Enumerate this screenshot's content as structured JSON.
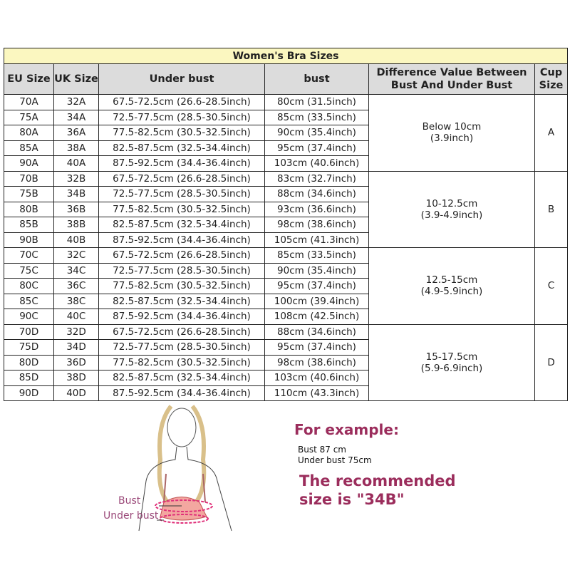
{
  "title": "Women's Bra Sizes",
  "headers": [
    "EU Size",
    "UK Size",
    "Under bust",
    "bust",
    "Difference Value Between Bust And Under Bust",
    "Cup Size"
  ],
  "groups": [
    {
      "difference": "Below 10cm (3.9inch)",
      "cup": "A",
      "rows": [
        [
          "70A",
          "32A",
          "67.5-72.5cm (26.6-28.5inch)",
          "80cm (31.5inch)"
        ],
        [
          "75A",
          "34A",
          "72.5-77.5cm (28.5-30.5inch)",
          "85cm (33.5inch)"
        ],
        [
          "80A",
          "36A",
          "77.5-82.5cm (30.5-32.5inch)",
          "90cm (35.4inch)"
        ],
        [
          "85A",
          "38A",
          "82.5-87.5cm (32.5-34.4inch)",
          "95cm (37.4inch)"
        ],
        [
          "90A",
          "40A",
          "87.5-92.5cm (34.4-36.4inch)",
          "103cm (40.6inch)"
        ]
      ]
    },
    {
      "difference": "10-12.5cm (3.9-4.9inch)",
      "cup": "B",
      "rows": [
        [
          "70B",
          "32B",
          "67.5-72.5cm (26.6-28.5inch)",
          "83cm (32.7inch)"
        ],
        [
          "75B",
          "34B",
          "72.5-77.5cm (28.5-30.5inch)",
          "88cm (34.6inch)"
        ],
        [
          "80B",
          "36B",
          "77.5-82.5cm (30.5-32.5inch)",
          "93cm (36.6inch)"
        ],
        [
          "85B",
          "38B",
          "82.5-87.5cm (32.5-34.4inch)",
          "98cm (38.6inch)"
        ],
        [
          "90B",
          "40B",
          "87.5-92.5cm (34.4-36.4inch)",
          "105cm (41.3inch)"
        ]
      ]
    },
    {
      "difference": "12.5-15cm (4.9-5.9inch)",
      "cup": "C",
      "rows": [
        [
          "70C",
          "32C",
          "67.5-72.5cm (26.6-28.5inch)",
          "85cm (33.5inch)"
        ],
        [
          "75C",
          "34C",
          "72.5-77.5cm (28.5-30.5inch)",
          "90cm (35.4inch)"
        ],
        [
          "80C",
          "36C",
          "77.5-82.5cm (30.5-32.5inch)",
          "95cm (37.4inch)"
        ],
        [
          "85C",
          "38C",
          "82.5-87.5cm (32.5-34.4inch)",
          "100cm (39.4inch)"
        ],
        [
          "90C",
          "40C",
          "87.5-92.5cm (34.4-36.4inch)",
          "108cm (42.5inch)"
        ]
      ]
    },
    {
      "difference": "15-17.5cm (5.9-6.9inch)",
      "cup": "D",
      "rows": [
        [
          "70D",
          "32D",
          "67.5-72.5cm (26.6-28.5inch)",
          "88cm (34.6inch)"
        ],
        [
          "75D",
          "34D",
          "72.5-77.5cm (28.5-30.5inch)",
          "95cm (37.4inch)"
        ],
        [
          "80D",
          "36D",
          "77.5-82.5cm (30.5-32.5inch)",
          "98cm (38.6inch)"
        ],
        [
          "85D",
          "38D",
          "82.5-87.5cm (32.5-34.4inch)",
          "103cm (40.6inch)"
        ],
        [
          "90D",
          "40D",
          "87.5-92.5cm (34.4-36.4inch)",
          "110cm (43.3inch)"
        ]
      ]
    }
  ],
  "illustration": {
    "bust_label": "Bust",
    "under_bust_label": "Under bust"
  },
  "example": {
    "heading": "For example:",
    "line1": "Bust 87 cm",
    "line2": "Under bust 75cm",
    "result1": "The recommended",
    "result2": "size is \"34B\""
  },
  "colors": {
    "title_bg": "#fbf7c0",
    "header_bg": "#dcdcdc",
    "accent": "#9b2d5c",
    "measure": "#e0307a"
  }
}
